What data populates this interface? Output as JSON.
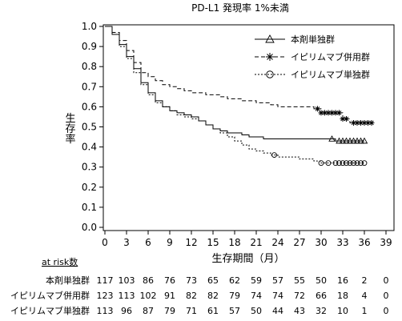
{
  "chart_data": {
    "type": "line",
    "title": "PD-L1 発現率 1%未満",
    "xlabel": "生存期間（月）",
    "ylabel": "生存率",
    "xlim": [
      0,
      39
    ],
    "ylim": [
      0,
      1.0
    ],
    "xticks": [
      0,
      3,
      6,
      9,
      12,
      15,
      18,
      21,
      24,
      27,
      30,
      33,
      36,
      39
    ],
    "yticks": [
      0.0,
      0.1,
      0.2,
      0.3,
      0.4,
      0.5,
      0.6,
      0.7,
      0.8,
      0.9,
      1.0
    ],
    "legend_position": "top-right",
    "series": [
      {
        "name": "本剤単独群",
        "marker": "triangle",
        "dash": "solid",
        "x": [
          0,
          1,
          2,
          3,
          4,
          5,
          6,
          7,
          8,
          9,
          10,
          11,
          12,
          13,
          14,
          15,
          16,
          17,
          18,
          19,
          20,
          21,
          22,
          23,
          24,
          25,
          26,
          27,
          28,
          29,
          30,
          31,
          32,
          33,
          34,
          35,
          36
        ],
        "y": [
          1.0,
          0.96,
          0.91,
          0.85,
          0.79,
          0.72,
          0.67,
          0.63,
          0.6,
          0.58,
          0.57,
          0.56,
          0.55,
          0.53,
          0.51,
          0.49,
          0.48,
          0.47,
          0.47,
          0.46,
          0.45,
          0.45,
          0.44,
          0.44,
          0.44,
          0.44,
          0.44,
          0.44,
          0.44,
          0.44,
          0.44,
          0.44,
          0.43,
          0.43,
          0.43,
          0.43,
          0.43
        ],
        "censor_x": [
          31.5,
          32.5,
          33.0,
          33.5,
          34.0,
          34.5,
          35.0,
          35.5,
          36.0
        ]
      },
      {
        "name": "イピリムマブ併用群",
        "marker": "asterisk",
        "dash": "dash",
        "x": [
          0,
          1,
          2,
          3,
          4,
          5,
          6,
          7,
          8,
          9,
          10,
          11,
          12,
          13,
          14,
          15,
          16,
          17,
          18,
          19,
          20,
          21,
          22,
          23,
          24,
          25,
          26,
          27,
          28,
          29,
          30,
          31,
          32,
          33,
          34,
          35,
          36,
          37
        ],
        "y": [
          1.0,
          0.97,
          0.93,
          0.88,
          0.82,
          0.77,
          0.75,
          0.73,
          0.71,
          0.7,
          0.69,
          0.68,
          0.67,
          0.67,
          0.66,
          0.66,
          0.65,
          0.64,
          0.64,
          0.63,
          0.63,
          0.62,
          0.62,
          0.61,
          0.6,
          0.6,
          0.6,
          0.6,
          0.6,
          0.59,
          0.57,
          0.57,
          0.57,
          0.54,
          0.52,
          0.52,
          0.52,
          0.52
        ],
        "censor_x": [
          29.5,
          30.0,
          30.5,
          31.0,
          31.5,
          32.0,
          32.5,
          33.0,
          33.5,
          34.5,
          35.0,
          35.5,
          36.0,
          36.5,
          37.0
        ]
      },
      {
        "name": "イピリムマブ単独群",
        "marker": "circle",
        "dash": "dot",
        "x": [
          0,
          1,
          2,
          3,
          4,
          5,
          6,
          7,
          8,
          9,
          10,
          11,
          12,
          13,
          14,
          15,
          16,
          17,
          18,
          19,
          20,
          21,
          22,
          23,
          24,
          25,
          26,
          27,
          28,
          29,
          30,
          31,
          32,
          33,
          34,
          35,
          36
        ],
        "y": [
          1.0,
          0.96,
          0.9,
          0.84,
          0.77,
          0.71,
          0.66,
          0.62,
          0.6,
          0.58,
          0.56,
          0.55,
          0.54,
          0.53,
          0.51,
          0.49,
          0.47,
          0.45,
          0.43,
          0.41,
          0.39,
          0.38,
          0.37,
          0.36,
          0.35,
          0.35,
          0.35,
          0.34,
          0.34,
          0.33,
          0.32,
          0.32,
          0.32,
          0.32,
          0.32,
          0.32,
          0.32
        ],
        "censor_x": [
          23.5,
          30.0,
          31.0,
          32.0,
          32.5,
          33.0,
          33.5,
          34.0,
          34.5,
          35.0,
          35.5,
          36.0
        ]
      }
    ],
    "at_risk": {
      "header": "at risk数",
      "timepoints": [
        0,
        3,
        6,
        9,
        12,
        15,
        18,
        21,
        24,
        27,
        30,
        33,
        36,
        39
      ],
      "rows": [
        {
          "label": "本剤単独群",
          "values": [
            "117",
            "103",
            "86",
            "76",
            "73",
            "65",
            "62",
            "59",
            "57",
            "55",
            "50",
            "16",
            "2",
            "0"
          ]
        },
        {
          "label": "イピリムマブ併用群",
          "values": [
            "123",
            "113",
            "102",
            "91",
            "82",
            "82",
            "79",
            "74",
            "74",
            "72",
            "66",
            "18",
            "4",
            "0"
          ]
        },
        {
          "label": "イピリムマブ単独群",
          "values": [
            "113",
            "96",
            "87",
            "79",
            "71",
            "61",
            "57",
            "50",
            "44",
            "43",
            "32",
            "10",
            "1",
            "0"
          ]
        }
      ]
    }
  }
}
